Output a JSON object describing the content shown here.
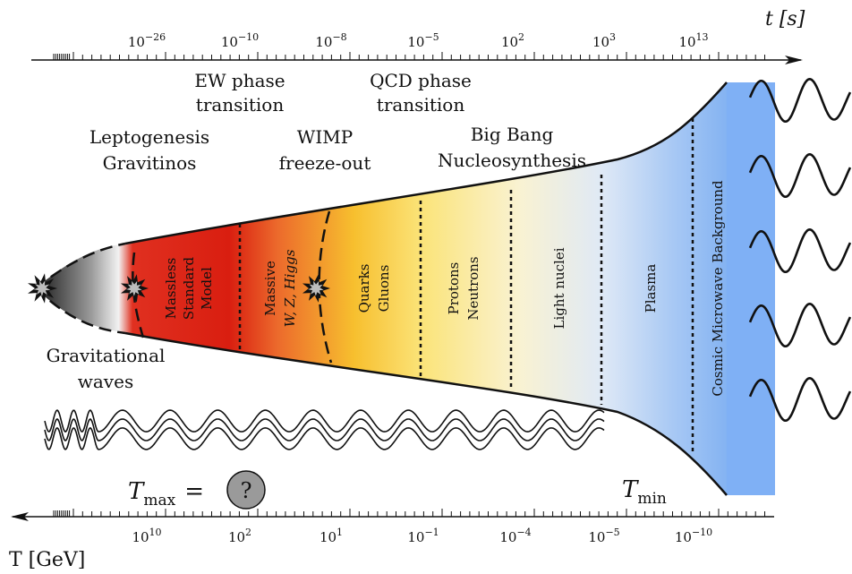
{
  "time_axis": {
    "label": "t [s]",
    "ticks": [
      {
        "base": "10",
        "exp": "−26"
      },
      {
        "base": "10",
        "exp": "−10"
      },
      {
        "base": "10",
        "exp": "−8"
      },
      {
        "base": "10",
        "exp": "−5"
      },
      {
        "base": "10",
        "exp": "2"
      },
      {
        "base": "10",
        "exp": "3"
      },
      {
        "base": "10",
        "exp": "13"
      }
    ]
  },
  "temperature_axis": {
    "label": "T [GeV]",
    "ticks": [
      {
        "base": "10",
        "exp": "10"
      },
      {
        "base": "10",
        "exp": "2"
      },
      {
        "base": "10",
        "exp": "1"
      },
      {
        "base": "10",
        "exp": "−1"
      },
      {
        "base": "10",
        "exp": "−4"
      },
      {
        "base": "10",
        "exp": "−5"
      },
      {
        "base": "10",
        "exp": "−10"
      }
    ]
  },
  "events": {
    "leptogenesis": [
      "Leptogenesis",
      "Gravitinos"
    ],
    "ew_transition": [
      "EW phase",
      "transition"
    ],
    "wimp": [
      "WIMP",
      "freeze-out"
    ],
    "qcd_transition": [
      "QCD phase",
      "transition"
    ],
    "bbn": [
      "Big Bang",
      "Nucleosynthesis"
    ],
    "grav_waves": [
      "Gravitational",
      "waves"
    ]
  },
  "eras": {
    "massless_sm": [
      "Massless",
      "Standard",
      "Model"
    ],
    "massive_whiggs": [
      "Massive",
      "W, Z, Higgs"
    ],
    "quarks": [
      "Quarks",
      "Gluons"
    ],
    "protons": [
      "Protons",
      "Neutrons"
    ],
    "light_nuclei": [
      "Light nuclei"
    ],
    "plasma": [
      "Plasma"
    ],
    "cmb": [
      "Cosmic Microwave Background"
    ]
  },
  "tmax": {
    "symbol": "T",
    "sub": "max",
    "eq": "=",
    "unknown": "?"
  },
  "tmin": {
    "symbol": "T",
    "sub": "min"
  },
  "colors": {
    "ink": "#111111",
    "cmb_band": "#7fb0f5",
    "question_disc": "#9a9a9a"
  }
}
